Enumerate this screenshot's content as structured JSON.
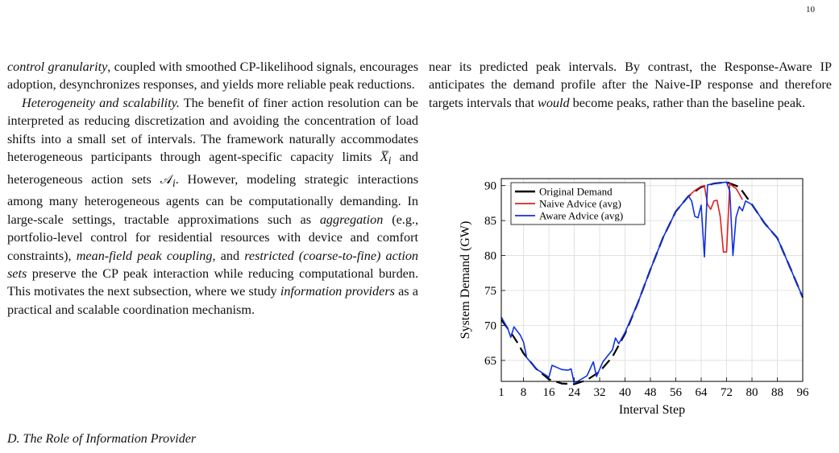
{
  "page_number": "10",
  "left_column": {
    "p1_parts": [
      {
        "t": "control granularity",
        "i": true
      },
      {
        "t": ", coupled with smoothed CP-likelihood signals, encourages adoption, desynchronizes responses, and yields more reliable peak reductions.",
        "i": false
      }
    ],
    "p2_parts": [
      {
        "t": "Heterogeneity and scalability.",
        "i": true
      },
      {
        "t": " The benefit of finer action resolution can be interpreted as reducing discretization and avoiding the concentration of load shifts into a small set of intervals. The framework naturally accommodates heteroge­neous participants through agent-specific capacity limits ",
        "i": false
      },
      {
        "t": "X̅",
        "i": true
      },
      {
        "t": "i",
        "i": true,
        "sub": true
      },
      {
        "t": " and heterogeneous action sets ",
        "i": false
      },
      {
        "t": "𝒜",
        "i": false
      },
      {
        "t": "i",
        "i": true,
        "sub": true
      },
      {
        "t": ". However, modeling strategic interactions among many heterogeneous agents can be com­putationally demanding. In large-scale settings, tractable ap­proximations such as ",
        "i": false
      },
      {
        "t": "aggregation",
        "i": true
      },
      {
        "t": " (e.g., portfolio-level control for residential resources with device and comfort constraints), ",
        "i": false
      },
      {
        "t": "mean-field peak coupling",
        "i": true
      },
      {
        "t": ", and ",
        "i": false
      },
      {
        "t": "restricted (coarse-to-fine) action sets",
        "i": true
      },
      {
        "t": " preserve the CP peak interaction while reducing com­putational burden. This motivates the next subsection, where we study ",
        "i": false
      },
      {
        "t": "information providers",
        "i": true
      },
      {
        "t": " as a practical and scalable coordination mechanism.",
        "i": false
      }
    ],
    "section_heading": "D.  The Role of Information Provider"
  },
  "right_column": {
    "p1_parts": [
      {
        "t": "near its predicted peak intervals. By contrast, the Response-Aware IP anticipates the demand profile after the Naive-IP response and therefore targets intervals that ",
        "i": false
      },
      {
        "t": "would",
        "i": true
      },
      {
        "t": " become peaks, rather than the baseline peak.",
        "i": false
      }
    ]
  },
  "chart_data": {
    "type": "line",
    "xlabel": "Interval Step",
    "ylabel": "System Demand (GW)",
    "xlim": [
      1,
      96
    ],
    "ylim": [
      62,
      91
    ],
    "xticks": [
      1,
      8,
      16,
      24,
      32,
      40,
      48,
      56,
      64,
      72,
      80,
      88,
      96
    ],
    "yticks": [
      65,
      70,
      75,
      80,
      85,
      90
    ],
    "grid": true,
    "legend_position": "top-left",
    "series": [
      {
        "name": "Original Demand",
        "color": "#000000",
        "dashed": true,
        "points": [
          [
            1,
            70.8
          ],
          [
            4,
            69.0
          ],
          [
            6,
            67.6
          ],
          [
            8,
            66.0
          ],
          [
            12,
            63.8
          ],
          [
            16,
            62.3
          ],
          [
            20,
            61.7
          ],
          [
            24,
            61.6
          ],
          [
            28,
            62.2
          ],
          [
            32,
            63.4
          ],
          [
            36,
            65.5
          ],
          [
            40,
            68.8
          ],
          [
            44,
            73.2
          ],
          [
            48,
            78.0
          ],
          [
            52,
            82.6
          ],
          [
            56,
            86.3
          ],
          [
            60,
            88.5
          ],
          [
            64,
            89.8
          ],
          [
            68,
            90.3
          ],
          [
            72,
            90.5
          ],
          [
            76,
            89.8
          ],
          [
            80,
            87.3
          ],
          [
            84,
            84.6
          ],
          [
            88,
            82.5
          ],
          [
            92,
            78.3
          ],
          [
            96,
            74.0
          ]
        ]
      },
      {
        "name": "Naive Advice (avg)",
        "color": "#e02020",
        "dashed": false,
        "points": [
          [
            60,
            88.5
          ],
          [
            62,
            89.3
          ],
          [
            64,
            89.9
          ],
          [
            65,
            90.0
          ],
          [
            66,
            87.3
          ],
          [
            67,
            86.6
          ],
          [
            68,
            87.8
          ],
          [
            69,
            87.9
          ],
          [
            70,
            85.6
          ],
          [
            71,
            80.5
          ],
          [
            72,
            80.5
          ],
          [
            73,
            90.3
          ],
          [
            74,
            89.9
          ],
          [
            75,
            89.6
          ],
          [
            76,
            88.8
          ],
          [
            77,
            88.0
          ]
        ]
      },
      {
        "name": "Aware Advice (avg)",
        "color": "#1030e0",
        "dashed": false,
        "points": [
          [
            1,
            71.2
          ],
          [
            3,
            69.6
          ],
          [
            4,
            68.3
          ],
          [
            5,
            69.8
          ],
          [
            7,
            68.6
          ],
          [
            8,
            67.6
          ],
          [
            9,
            65.4
          ],
          [
            12,
            63.8
          ],
          [
            16,
            62.6
          ],
          [
            17,
            64.3
          ],
          [
            20,
            63.7
          ],
          [
            22,
            63.6
          ],
          [
            23,
            63.8
          ],
          [
            24,
            61.7
          ],
          [
            28,
            62.8
          ],
          [
            30,
            64.8
          ],
          [
            31,
            62.7
          ],
          [
            33,
            64.8
          ],
          [
            36,
            66.5
          ],
          [
            37,
            68.2
          ],
          [
            38,
            67.4
          ],
          [
            40,
            69.0
          ],
          [
            44,
            73.2
          ],
          [
            48,
            78.0
          ],
          [
            52,
            82.6
          ],
          [
            56,
            86.3
          ],
          [
            60,
            88.5
          ],
          [
            61,
            87.8
          ],
          [
            62,
            85.6
          ],
          [
            63,
            85.4
          ],
          [
            64,
            87.2
          ],
          [
            65,
            79.8
          ],
          [
            66,
            90.1
          ],
          [
            68,
            90.3
          ],
          [
            72,
            90.5
          ],
          [
            73,
            89.2
          ],
          [
            74,
            80.0
          ],
          [
            75,
            85.5
          ],
          [
            76,
            87.0
          ],
          [
            77,
            86.4
          ],
          [
            78,
            87.8
          ],
          [
            80,
            87.3
          ],
          [
            84,
            84.6
          ],
          [
            88,
            82.5
          ],
          [
            92,
            78.3
          ],
          [
            96,
            74.0
          ]
        ]
      }
    ]
  }
}
